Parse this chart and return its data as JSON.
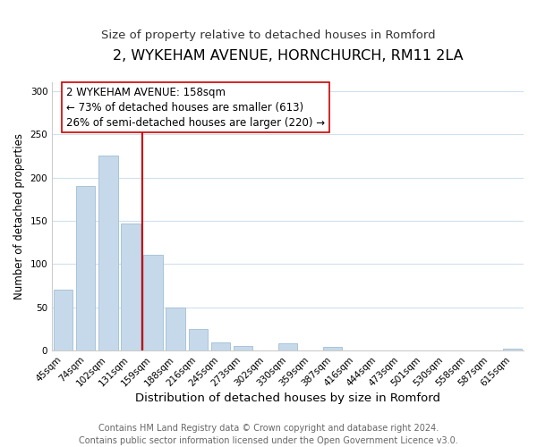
{
  "title": "2, WYKEHAM AVENUE, HORNCHURCH, RM11 2LA",
  "subtitle": "Size of property relative to detached houses in Romford",
  "xlabel": "Distribution of detached houses by size in Romford",
  "ylabel": "Number of detached properties",
  "footer_line1": "Contains HM Land Registry data © Crown copyright and database right 2024.",
  "footer_line2": "Contains public sector information licensed under the Open Government Licence v3.0.",
  "bar_labels": [
    "45sqm",
    "74sqm",
    "102sqm",
    "131sqm",
    "159sqm",
    "188sqm",
    "216sqm",
    "245sqm",
    "273sqm",
    "302sqm",
    "330sqm",
    "359sqm",
    "387sqm",
    "416sqm",
    "444sqm",
    "473sqm",
    "501sqm",
    "530sqm",
    "558sqm",
    "587sqm",
    "615sqm"
  ],
  "bar_values": [
    70,
    190,
    225,
    147,
    111,
    50,
    25,
    10,
    5,
    0,
    9,
    0,
    4,
    0,
    0,
    0,
    0,
    0,
    0,
    0,
    2
  ],
  "bar_color": "#c6d9ea",
  "bar_edgecolor": "#a8c4d8",
  "annotation_box_text": "2 WYKEHAM AVENUE: 158sqm\n← 73% of detached houses are smaller (613)\n26% of semi-detached houses are larger (220) →",
  "vline_x_index": 4,
  "vline_color": "#cc0000",
  "ylim": [
    0,
    310
  ],
  "yticks": [
    0,
    50,
    100,
    150,
    200,
    250,
    300
  ],
  "title_fontsize": 11.5,
  "subtitle_fontsize": 9.5,
  "xlabel_fontsize": 9.5,
  "ylabel_fontsize": 8.5,
  "annotation_fontsize": 8.5,
  "footer_fontsize": 7,
  "tick_fontsize": 7.5,
  "grid_color": "#d0e0ee",
  "bg_color": "#ffffff"
}
